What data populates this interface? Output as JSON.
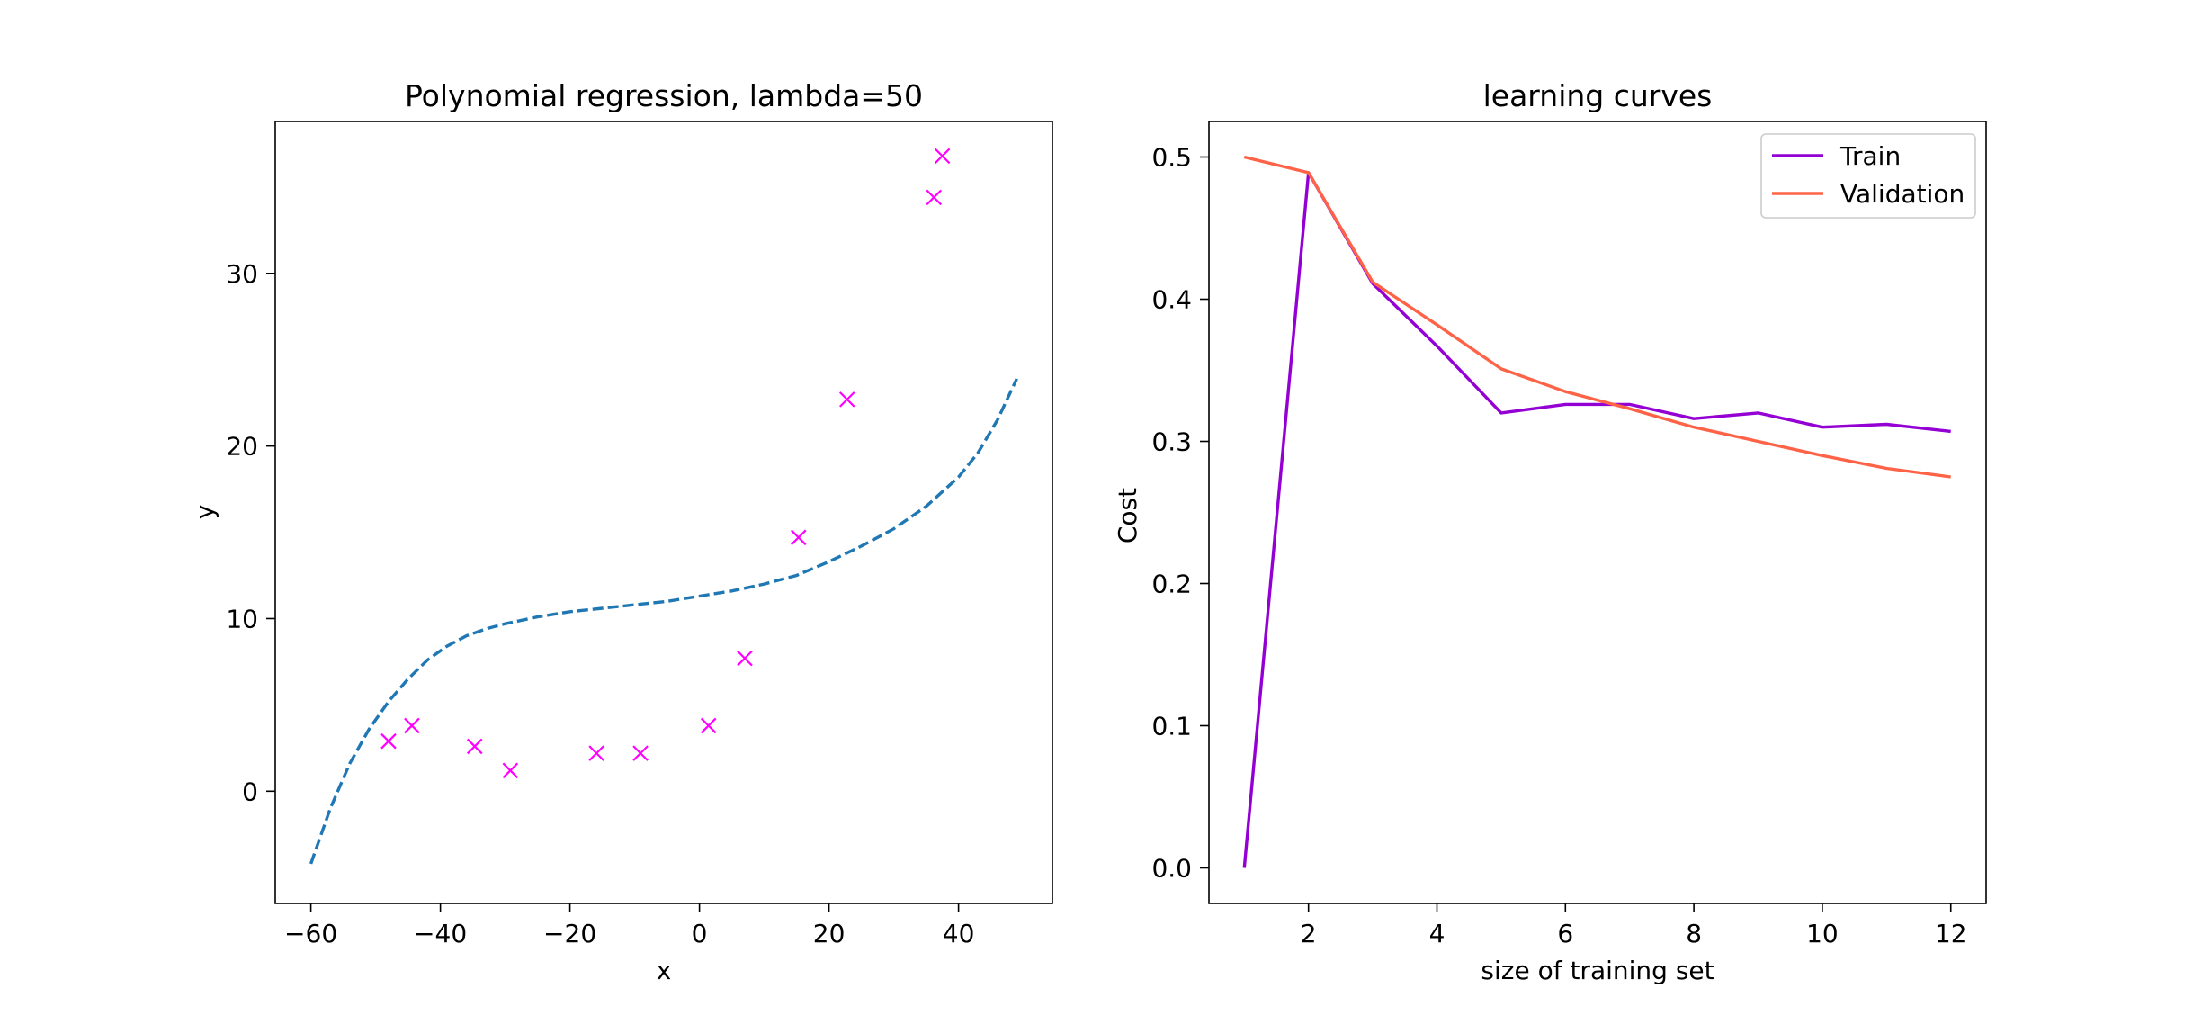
{
  "chart_data": [
    {
      "type": "scatter",
      "title": "Polynomial regression, lambda=50",
      "xlabel": "x",
      "ylabel": "y",
      "xlim": [
        -65.5,
        54.5
      ],
      "ylim": [
        -6.5,
        38.8
      ],
      "xticks": [
        -60,
        -40,
        -20,
        0,
        20,
        40
      ],
      "xtick_labels": [
        "−60",
        "−40",
        "−20",
        "0",
        "20",
        "40"
      ],
      "yticks": [
        0,
        10,
        20,
        30
      ],
      "ytick_labels": [
        "0",
        "10",
        "20",
        "30"
      ],
      "grid": false,
      "points": {
        "marker": "x",
        "color": "#ff00ff",
        "x": [
          -48,
          -44.4,
          -34.7,
          -29.2,
          -15.9,
          -9.1,
          1.4,
          7.0,
          15.3,
          22.8,
          36.2,
          37.5
        ],
        "y": [
          2.9,
          3.8,
          2.6,
          1.2,
          2.2,
          2.2,
          3.8,
          7.7,
          14.7,
          22.7,
          34.4,
          36.8
        ]
      },
      "fit_curve": {
        "style": "dashed",
        "color": "#1f77b4",
        "x": [
          -60,
          -57,
          -54,
          -51,
          -48,
          -45,
          -42,
          -39,
          -36,
          -33,
          -30,
          -25,
          -20,
          -15,
          -10,
          -5,
          0,
          5,
          10,
          15,
          20,
          25,
          30,
          35,
          40,
          43,
          46,
          49
        ],
        "y": [
          -4.2,
          -1.0,
          1.6,
          3.6,
          5.2,
          6.5,
          7.6,
          8.4,
          9.0,
          9.4,
          9.7,
          10.1,
          10.4,
          10.6,
          10.8,
          11.0,
          11.3,
          11.6,
          12.0,
          12.5,
          13.3,
          14.2,
          15.2,
          16.5,
          18.2,
          19.6,
          21.5,
          23.9
        ]
      }
    },
    {
      "type": "line",
      "title": "learning curves",
      "xlabel": "size of training set",
      "ylabel": "Cost",
      "xlim": [
        0.45,
        12.55
      ],
      "ylim": [
        -0.025,
        0.525
      ],
      "xticks": [
        2,
        4,
        6,
        8,
        10,
        12
      ],
      "xtick_labels": [
        "2",
        "4",
        "6",
        "8",
        "10",
        "12"
      ],
      "yticks": [
        0.0,
        0.1,
        0.2,
        0.3,
        0.4,
        0.5
      ],
      "ytick_labels": [
        "0.0",
        "0.1",
        "0.2",
        "0.3",
        "0.4",
        "0.5"
      ],
      "grid": false,
      "legend_position": "top-right",
      "x": [
        1,
        2,
        3,
        4,
        5,
        6,
        7,
        8,
        9,
        10,
        11,
        12
      ],
      "series": [
        {
          "name": "Train",
          "color": "#9400d3",
          "values": [
            0.0,
            0.489,
            0.411,
            0.367,
            0.32,
            0.326,
            0.326,
            0.316,
            0.32,
            0.31,
            0.312,
            0.307
          ]
        },
        {
          "name": "Validation",
          "color": "#ff6347",
          "values": [
            0.5,
            0.489,
            0.412,
            0.382,
            0.351,
            0.335,
            0.323,
            0.31,
            0.3,
            0.29,
            0.281,
            0.275
          ]
        }
      ]
    }
  ]
}
